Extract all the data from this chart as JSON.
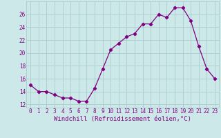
{
  "x": [
    0,
    1,
    2,
    3,
    4,
    5,
    6,
    7,
    8,
    9,
    10,
    11,
    12,
    13,
    14,
    15,
    16,
    17,
    18,
    19,
    20,
    21,
    22,
    23
  ],
  "y": [
    15.0,
    14.0,
    14.0,
    13.5,
    13.0,
    13.0,
    12.5,
    12.5,
    14.5,
    17.5,
    20.5,
    21.5,
    22.5,
    23.0,
    24.5,
    24.5,
    26.0,
    25.5,
    27.0,
    27.0,
    25.0,
    21.0,
    17.5,
    16.0
  ],
  "line_color": "#800080",
  "marker": "D",
  "marker_size": 2.2,
  "bg_color": "#cce8e8",
  "grid_color": "#aacccc",
  "xlabel": "Windchill (Refroidissement éolien,°C)",
  "xlabel_color": "#800080",
  "tick_color": "#800080",
  "ylim": [
    11.5,
    28.0
  ],
  "xlim": [
    -0.5,
    23.5
  ],
  "yticks": [
    12,
    14,
    16,
    18,
    20,
    22,
    24,
    26
  ],
  "xticks": [
    0,
    1,
    2,
    3,
    4,
    5,
    6,
    7,
    8,
    9,
    10,
    11,
    12,
    13,
    14,
    15,
    16,
    17,
    18,
    19,
    20,
    21,
    22,
    23
  ],
  "tick_fontsize": 5.5,
  "xlabel_fontsize": 6.5
}
